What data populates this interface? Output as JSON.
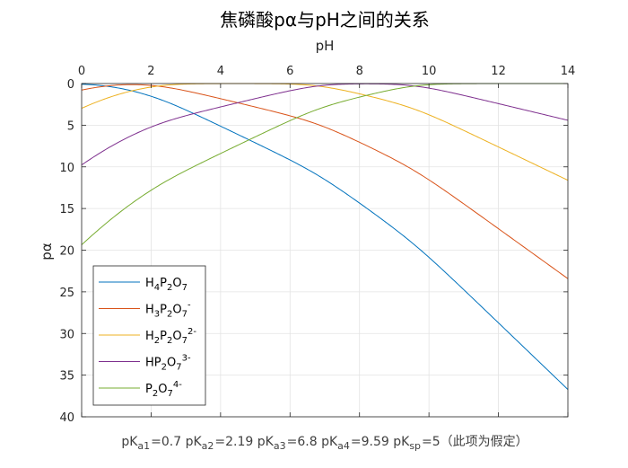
{
  "chart_data": {
    "type": "line",
    "title": "焦磷酸pα与pH之间的关系",
    "xlabel": "pH",
    "ylabel": "pα",
    "xlim": [
      0,
      14
    ],
    "ylim": [
      0,
      40
    ],
    "y_reversed": true,
    "x_axis_position": "top",
    "grid": true,
    "legend_placement": "bottom-left",
    "xticks": [
      "0",
      "2",
      "4",
      "6",
      "8",
      "10",
      "12",
      "14"
    ],
    "yticks": [
      "0",
      "5",
      "10",
      "15",
      "20",
      "25",
      "30",
      "35",
      "40"
    ],
    "pKa": [
      0.7,
      2.19,
      6.8,
      9.59
    ],
    "series": [
      {
        "name": "H4P2O7",
        "label_base": "H",
        "label_sub1": "4",
        "label_mid": "P",
        "label_sub2": "2",
        "label_end": "O",
        "label_sub3": "7",
        "label_sup": "",
        "color": "#0072BD",
        "charge": 0
      },
      {
        "name": "H3P2O7-",
        "label_base": "H",
        "label_sub1": "3",
        "label_mid": "P",
        "label_sub2": "2",
        "label_end": "O",
        "label_sub3": "7",
        "label_sup": "-",
        "color": "#D95319",
        "charge": 1
      },
      {
        "name": "H2P2O72-",
        "label_base": "H",
        "label_sub1": "2",
        "label_mid": "P",
        "label_sub2": "2",
        "label_end": "O",
        "label_sub3": "7",
        "label_sup": "2-",
        "color": "#EDB120",
        "charge": 2
      },
      {
        "name": "HP2O73-",
        "label_base": "H",
        "label_sub1": "",
        "label_mid": "P",
        "label_sub2": "2",
        "label_end": "O",
        "label_sub3": "7",
        "label_sup": "3-",
        "color": "#7E2F8E",
        "charge": 3
      },
      {
        "name": "P2O74-",
        "label_base": "",
        "label_sub1": "",
        "label_mid": "P",
        "label_sub2": "2",
        "label_end": "O",
        "label_sub3": "7",
        "label_sup": "4-",
        "color": "#77AC30",
        "charge": 4
      }
    ],
    "annotation": {
      "pK": "pK",
      "a1": "a1",
      "v1": "=0.7 ",
      "a2": "a2",
      "v2": "=2.19 ",
      "a3": "a3",
      "v3": "=6.8 ",
      "a4": "a4",
      "v4": "=9.59 ",
      "sp": "sp",
      "vsp": "=5（此项为假定）"
    }
  }
}
